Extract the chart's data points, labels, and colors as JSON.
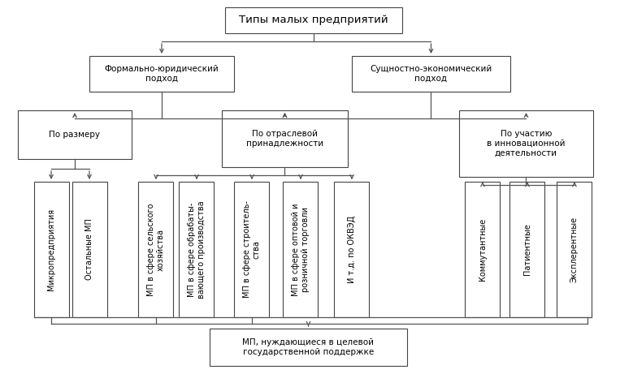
{
  "title": "Типы малых предприятий",
  "level2_left": "Формально-юридический\nподход",
  "level2_right": "Сущностно-экономический\nподход",
  "level3_left": "По размеру",
  "level3_mid": "По отраслевой\nпринадлежности",
  "level3_right": "По участию\nв инновационной\nдеятельности",
  "leaf_boxes": [
    "Микропредприятия",
    "Остальные МП",
    "МП в сфере сельского\nхозяйства",
    "МП в сфере обрабаты-\nвающего производства",
    "МП в сфере строитель-\nства",
    "МП в сфере оптовой и\nрозничной торговли",
    "И т.д. по ОКВЭД",
    "Коммутантные",
    "Патиентные",
    "Эксплерентные"
  ],
  "bottom_box": "МП, нуждающиеся в целевой\nгосударственной поддержке",
  "bg_color": "#ffffff",
  "box_edge_color": "#444444",
  "text_color": "#000000",
  "arrow_color": "#555555",
  "title_fontsize": 9.5,
  "body_fontsize": 7.5,
  "leaf_fontsize": 7.0
}
